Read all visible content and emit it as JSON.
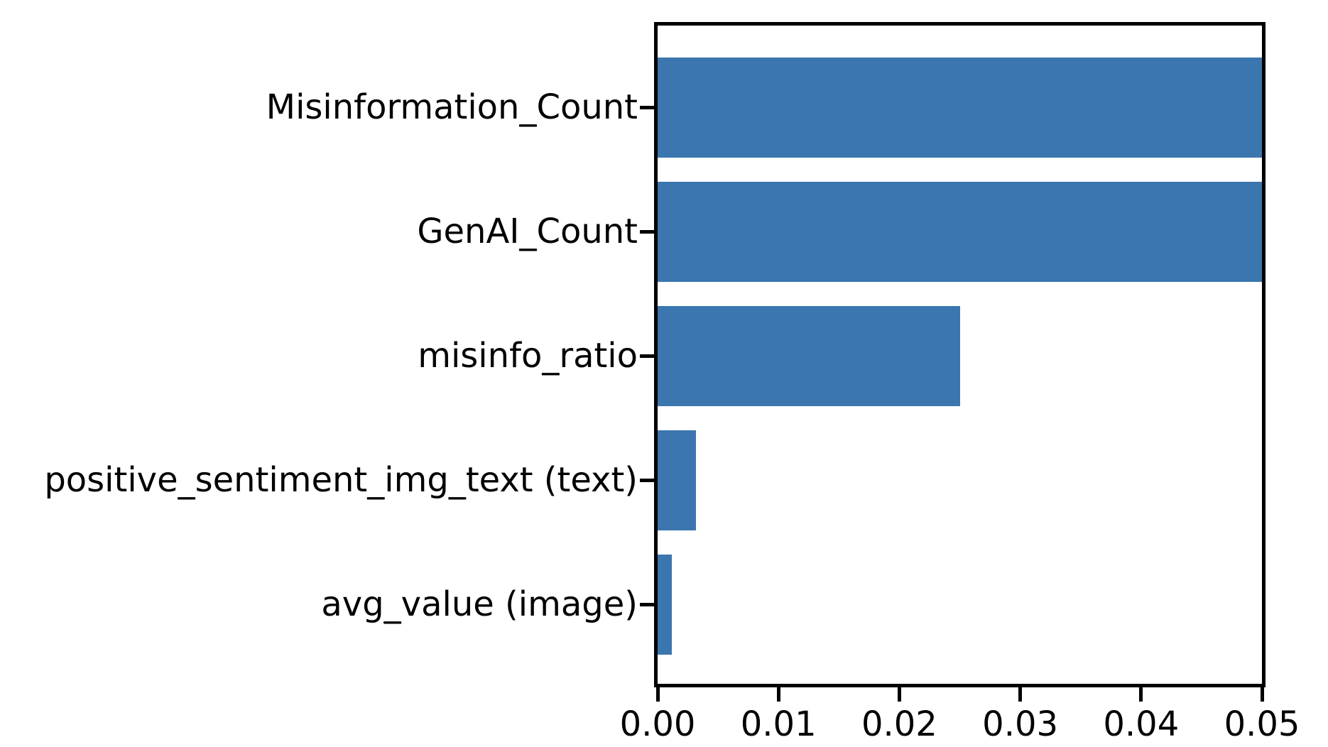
{
  "chart_data": {
    "type": "bar",
    "orientation": "horizontal",
    "title": "",
    "xlabel": "",
    "ylabel": "",
    "categories": [
      "Misinformation_Count",
      "GenAI_Count",
      "misinfo_ratio",
      "positive_sentiment_img_text (text)",
      "avg_value (image)"
    ],
    "values": [
      0.05,
      0.05,
      0.025,
      0.0032,
      0.0012
    ],
    "bars_reach_axis_max": [
      true,
      true,
      false,
      false,
      false
    ],
    "xlim": [
      0,
      0.05
    ],
    "x_tick_labels": [
      "0.00",
      "0.01",
      "0.02",
      "0.03",
      "0.04",
      "0.05"
    ],
    "grid": false,
    "legend": null,
    "bar_color": "#3B76AF",
    "axis_color": "#000000",
    "background_color": "#FFFFFF"
  }
}
